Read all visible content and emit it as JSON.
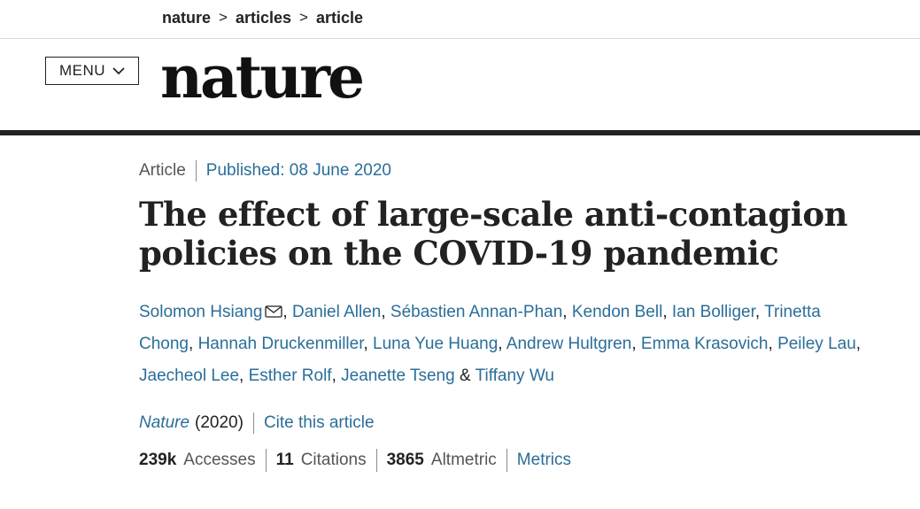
{
  "breadcrumb": {
    "items": [
      "nature",
      "articles",
      "article"
    ],
    "separator": ">"
  },
  "header": {
    "menu_label": "MENU",
    "logo_text": "nature"
  },
  "article": {
    "type": "Article",
    "published": "Published: 08 June 2020",
    "title_line1": "The effect of large-scale anti-contagion",
    "title_line2": "policies on the COVID-19 pandemic",
    "authors": [
      "Solomon Hsiang",
      "Daniel Allen",
      "Sébastien Annan-Phan",
      "Kendon Bell",
      "Ian Bolliger",
      "Trinetta Chong",
      "Hannah Druckenmiller",
      "Luna Yue Huang",
      "Andrew Hultgren",
      "Emma Krasovich",
      "Peiley Lau",
      "Jaecheol Lee",
      "Esther Rolf",
      "Jeanette Tseng",
      "Tiffany Wu"
    ],
    "author_sep": ", ",
    "author_last_sep": " & ",
    "journal": "Nature",
    "year": "(2020)",
    "cite_label": "Cite this article"
  },
  "metrics": {
    "accesses_value": "239k",
    "accesses_label": "Accesses",
    "citations_value": "11",
    "citations_label": "Citations",
    "altmetric_value": "3865",
    "altmetric_label": "Altmetric",
    "metrics_label": "Metrics"
  },
  "colors": {
    "link": "#2a6e99",
    "text": "#222222",
    "muted": "#555555"
  }
}
